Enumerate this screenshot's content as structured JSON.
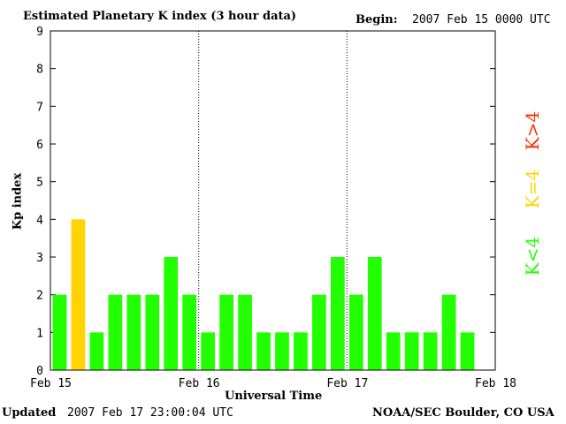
{
  "header": {
    "title": "Estimated Planetary K index (3 hour data)",
    "begin_label": "Begin:",
    "begin_value": "2007 Feb 15 0000 UTC"
  },
  "footer": {
    "updated_label": "Updated",
    "updated_value": "2007 Feb 17 23:00:04 UTC",
    "credit": "NOAA/SEC Boulder, CO USA"
  },
  "legend": {
    "greater": "K>4",
    "equal": "K=4",
    "less": "K<4"
  },
  "colors": {
    "below_4": "#22ff00",
    "equal_4": "#ffd400",
    "above_4": "#ff2a00"
  },
  "chart_data": {
    "type": "bar",
    "title": "Estimated Planetary K index (3 hour data)",
    "xlabel": "Universal Time",
    "ylabel": "Kp index",
    "ylim": [
      0,
      9
    ],
    "yticks": [
      "0",
      "1",
      "2",
      "3",
      "4",
      "5",
      "6",
      "7",
      "8",
      "9"
    ],
    "xticks": [
      "Feb 15",
      "Feb 16",
      "Feb 17",
      "Feb 18"
    ],
    "day_separators": [
      "Feb 16",
      "Feb 17"
    ],
    "values": [
      2,
      4,
      1,
      2,
      2,
      2,
      3,
      2,
      1,
      2,
      2,
      1,
      1,
      1,
      2,
      3,
      2,
      3,
      1,
      1,
      1,
      2,
      1
    ]
  }
}
